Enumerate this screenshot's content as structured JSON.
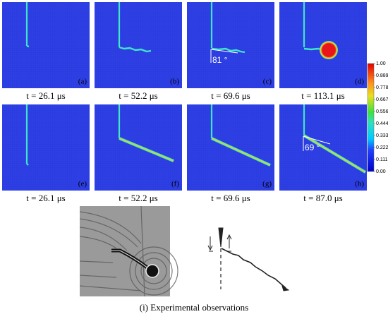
{
  "panels": [
    {
      "label": "(a)",
      "caption": "t = 26.1 μs"
    },
    {
      "label": "(b)",
      "caption": "t = 52.2 μs"
    },
    {
      "label": "(c)",
      "caption": "t = 69.6 μs",
      "angle": "81 °"
    },
    {
      "label": "(d)",
      "caption": "t = 113.1 μs"
    },
    {
      "label": "(e)",
      "caption": "t = 26.1 μs"
    },
    {
      "label": "(f)",
      "caption": "t = 52.2 μs"
    },
    {
      "label": "(g)",
      "caption": "t = 69.6 μs"
    },
    {
      "label": "(h)",
      "caption": "t = 87.0 μs",
      "angle": "69 °"
    }
  ],
  "colorbar": {
    "ticks": [
      {
        "value": 1,
        "label": "1.00"
      },
      0.889,
      0.778,
      0.667,
      0.556,
      0.444,
      0.333,
      0.222,
      0.111,
      {
        "value": 0,
        "label": "0.00"
      }
    ]
  },
  "experiment_caption": "(i) Experimental observations"
}
